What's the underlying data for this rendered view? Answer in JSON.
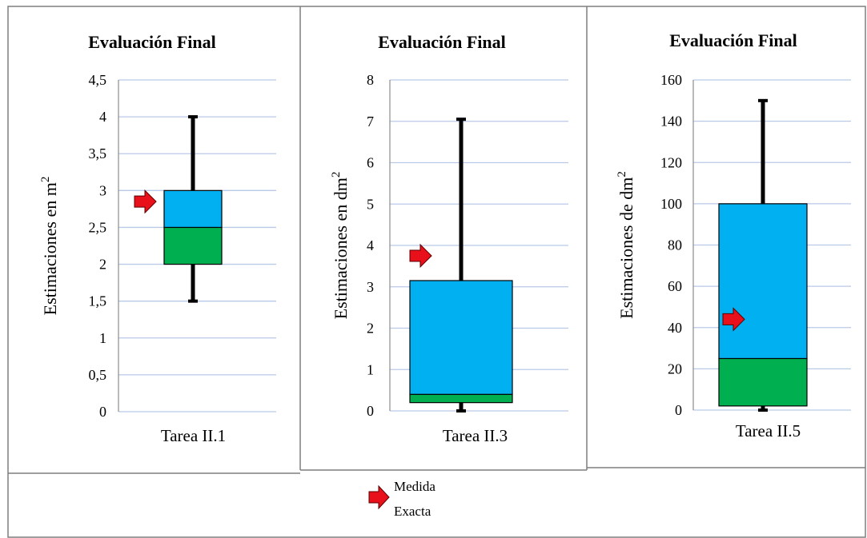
{
  "legend": {
    "marker_label_line1": "Medida",
    "marker_label_line2": "Exacta",
    "marker_color": "#e8101a"
  },
  "colors": {
    "upper_box": "#00b0f0",
    "lower_box": "#00b050",
    "whisker": "#000000",
    "grid": "#b9c9e8",
    "border": "#7f7f7f"
  },
  "chart_data": [
    {
      "type": "boxplot",
      "title": "Evaluación Final",
      "ylabel": "Estimaciones en m",
      "ylabel_superscript": "2",
      "category": "Tarea II.1",
      "ylim": [
        0,
        4.5
      ],
      "yticks": [
        0,
        0.5,
        1,
        1.5,
        2,
        2.5,
        3,
        3.5,
        4,
        4.5
      ],
      "ytick_labels": [
        "0",
        "0,5",
        "1",
        "1,5",
        "2",
        "2,5",
        "3",
        "3,5",
        "4",
        "4,5"
      ],
      "min": 1.5,
      "q1": 2.0,
      "median": 2.5,
      "q3": 3.0,
      "max": 4.0,
      "exact_measure": 2.85,
      "grid": true
    },
    {
      "type": "boxplot",
      "title": "Evaluación Final",
      "ylabel": "Estimaciones en dm",
      "ylabel_superscript": "2",
      "category": "Tarea II.3",
      "ylim": [
        0,
        8
      ],
      "yticks": [
        0,
        1,
        2,
        3,
        4,
        5,
        6,
        7,
        8
      ],
      "ytick_labels": [
        "0",
        "1",
        "2",
        "3",
        "4",
        "5",
        "6",
        "7",
        "8"
      ],
      "min": 0.0,
      "q1": 0.2,
      "median": 0.4,
      "q3": 3.15,
      "max": 7.05,
      "exact_measure": 3.75,
      "grid": true
    },
    {
      "type": "boxplot",
      "title": "Evaluación Final",
      "ylabel": "Estimaciones de dm",
      "ylabel_superscript": "2",
      "category": "Tarea II.5",
      "ylim": [
        0,
        160
      ],
      "yticks": [
        0,
        20,
        40,
        60,
        80,
        100,
        120,
        140,
        160
      ],
      "ytick_labels": [
        "0",
        "20",
        "40",
        "60",
        "80",
        "100",
        "120",
        "140",
        "160"
      ],
      "min": 0,
      "q1": 2,
      "median": 25,
      "q3": 100,
      "max": 150,
      "exact_measure": 44,
      "grid": true
    }
  ]
}
